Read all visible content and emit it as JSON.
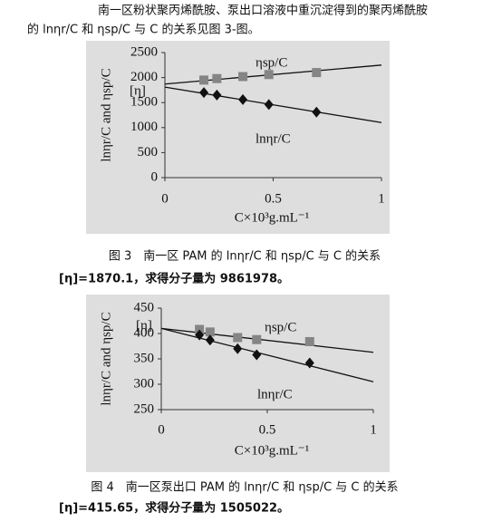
{
  "text": [
    "南一区粉状聚丙烯酰胺、泵出口溶液中重沉淀得到的聚丙烯酰胺",
    "的 lnηr/C 和 ηsp/C 与 C 的关系见图 3-图。"
  ],
  "chart_data": [
    {
      "type": "scatter",
      "x_label": "C×10³g.mL⁻¹",
      "y_label": "lnηr/C and ηsp/C",
      "xlim": [
        0,
        1
      ],
      "xticks": [
        0,
        0.5,
        1
      ],
      "ylim": [
        0,
        2500
      ],
      "yticks": [
        0,
        500,
        1000,
        1500,
        2000,
        2500
      ],
      "series": [
        {
          "name": "ηsp/C",
          "marker": "square",
          "color": "#858585",
          "x": [
            0.18,
            0.24,
            0.36,
            0.48,
            0.7
          ],
          "values": [
            1950,
            1980,
            2020,
            2060,
            2100
          ]
        },
        {
          "name": "lnηr/C",
          "marker": "diamond",
          "color": "#111111",
          "x": [
            0.18,
            0.24,
            0.36,
            0.48,
            0.7
          ],
          "values": [
            1700,
            1650,
            1560,
            1460,
            1310
          ]
        }
      ],
      "fit_lines": [
        {
          "x": [
            0,
            1
          ],
          "values": [
            1870,
            2250
          ]
        },
        {
          "x": [
            0,
            1
          ],
          "values": [
            1810,
            1100
          ]
        }
      ],
      "annotation": "[η]",
      "caption": "图 3　南一区 PAM 的 lnηr/C 和 ηsp/C 与 C 的关系",
      "note": "[η]=1870.1，求得分子量为 9861978。"
    },
    {
      "type": "scatter",
      "x_label": "C×10³g.mL⁻¹",
      "y_label": "lnηr/C and ηsp/C",
      "xlim": [
        0,
        1
      ],
      "xticks": [
        0,
        0.5,
        1
      ],
      "ylim": [
        250,
        450
      ],
      "yticks": [
        250,
        300,
        350,
        400,
        450
      ],
      "series": [
        {
          "name": "ηsp/C",
          "marker": "square",
          "color": "#858585",
          "x": [
            0.18,
            0.23,
            0.36,
            0.45,
            0.7
          ],
          "values": [
            408,
            403,
            392,
            388,
            384
          ]
        },
        {
          "name": "lnηr/C",
          "marker": "diamond",
          "color": "#111111",
          "x": [
            0.18,
            0.23,
            0.36,
            0.45,
            0.7
          ],
          "values": [
            397,
            387,
            370,
            358,
            342
          ]
        }
      ],
      "fit_lines": [
        {
          "x": [
            0,
            1
          ],
          "values": [
            410,
            363
          ]
        },
        {
          "x": [
            0,
            1
          ],
          "values": [
            410,
            305
          ]
        }
      ],
      "annotation": "[η]",
      "caption": "图 4　南一区泵出口 PAM 的 lnηr/C 和 ηsp/C 与 C 的关系",
      "note": "[η]=415.65，求得分子量为 1505022。"
    }
  ]
}
